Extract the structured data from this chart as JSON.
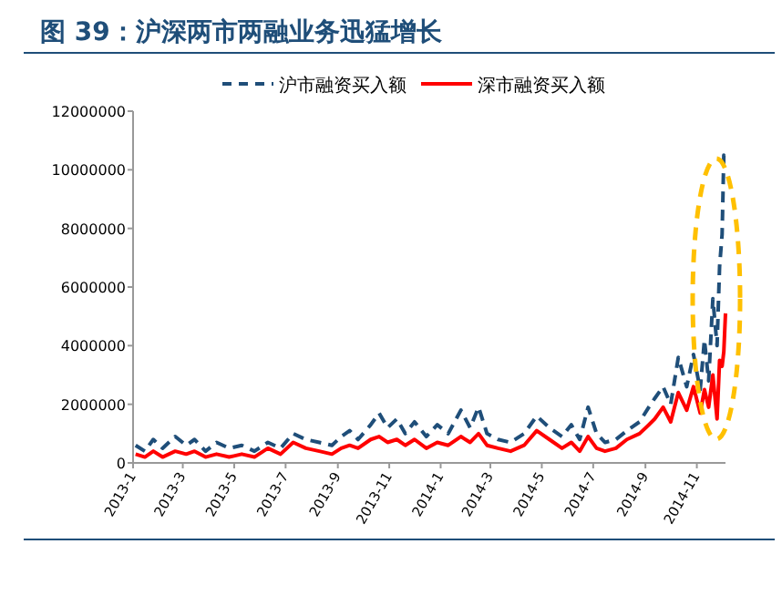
{
  "chart_data": {
    "type": "line",
    "title": "图 39：沪深两市两融业务迅猛增长",
    "x": [
      "2013-01-04",
      "2013-01-15",
      "2013-01-25",
      "2013-02-05",
      "2013-02-20",
      "2013-03-05",
      "2013-03-15",
      "2013-03-28",
      "2013-04-10",
      "2013-04-25",
      "2013-05-10",
      "2013-05-25",
      "2013-06-10",
      "2013-06-25",
      "2013-07-10",
      "2013-07-25",
      "2013-08-10",
      "2013-08-25",
      "2013-09-05",
      "2013-09-15",
      "2013-09-25",
      "2013-10-10",
      "2013-10-20",
      "2013-10-30",
      "2013-11-10",
      "2013-11-20",
      "2013-12-01",
      "2013-12-15",
      "2013-12-28",
      "2014-01-10",
      "2014-01-25",
      "2014-02-05",
      "2014-02-15",
      "2014-02-25",
      "2014-03-10",
      "2014-03-25",
      "2014-04-10",
      "2014-04-25",
      "2014-05-10",
      "2014-05-25",
      "2014-06-05",
      "2014-06-15",
      "2014-06-25",
      "2014-07-05",
      "2014-07-15",
      "2014-07-28",
      "2014-08-10",
      "2014-08-25",
      "2014-09-05",
      "2014-09-12",
      "2014-09-22",
      "2014-10-01",
      "2014-10-10",
      "2014-10-20",
      "2014-10-28",
      "2014-11-05",
      "2014-11-10",
      "2014-11-15",
      "2014-11-20",
      "2014-11-25",
      "2014-11-28",
      "2014-12-01",
      "2014-12-03",
      "2014-12-05"
    ],
    "series": [
      {
        "name": "沪市融资买入额",
        "color": "#1f4e79",
        "line_style": "dashed",
        "values": [
          600000,
          400000,
          800000,
          500000,
          900000,
          600000,
          800000,
          400000,
          700000,
          500000,
          600000,
          400000,
          700000,
          500000,
          1000000,
          800000,
          700000,
          600000,
          900000,
          1100000,
          800000,
          1300000,
          1700000,
          1200000,
          1500000,
          1000000,
          1400000,
          900000,
          1300000,
          1000000,
          1800000,
          1200000,
          1900000,
          1000000,
          800000,
          700000,
          1000000,
          1600000,
          1200000,
          900000,
          1300000,
          800000,
          1900000,
          1000000,
          700000,
          800000,
          1100000,
          1400000,
          1900000,
          2200000,
          2600000,
          2000000,
          3600000,
          2600000,
          3700000,
          2500000,
          4200000,
          2800000,
          5600000,
          4000000,
          6700000,
          7800000,
          10500000,
          10300000
        ]
      },
      {
        "name": "深市融资买入额",
        "color": "#ff0000",
        "line_style": "solid",
        "values": [
          300000,
          200000,
          400000,
          200000,
          400000,
          300000,
          400000,
          200000,
          300000,
          200000,
          300000,
          200000,
          500000,
          300000,
          700000,
          500000,
          400000,
          300000,
          500000,
          600000,
          500000,
          800000,
          900000,
          700000,
          800000,
          600000,
          800000,
          500000,
          700000,
          600000,
          900000,
          700000,
          1000000,
          600000,
          500000,
          400000,
          600000,
          1100000,
          800000,
          500000,
          700000,
          400000,
          900000,
          500000,
          400000,
          500000,
          800000,
          1000000,
          1300000,
          1500000,
          1900000,
          1400000,
          2400000,
          1800000,
          2600000,
          1700000,
          2500000,
          1900000,
          3000000,
          1500000,
          3500000,
          3300000,
          3800000,
          5100000
        ]
      }
    ],
    "xlim": [
      "2013-01-01",
      "2014-12-05"
    ],
    "xticks": [
      {
        "value": "2013-01-01",
        "label": "2013-1"
      },
      {
        "value": "2013-03-01",
        "label": "2013-3"
      },
      {
        "value": "2013-05-01",
        "label": "2013-5"
      },
      {
        "value": "2013-07-01",
        "label": "2013-7"
      },
      {
        "value": "2013-09-01",
        "label": "2013-9"
      },
      {
        "value": "2013-11-01",
        "label": "2013-11"
      },
      {
        "value": "2014-01-01",
        "label": "2014-1"
      },
      {
        "value": "2014-03-01",
        "label": "2014-3"
      },
      {
        "value": "2014-05-01",
        "label": "2014-5"
      },
      {
        "value": "2014-07-01",
        "label": "2014-7"
      },
      {
        "value": "2014-09-01",
        "label": "2014-9"
      },
      {
        "value": "2014-11-01",
        "label": "2014-11"
      }
    ],
    "ylim": [
      0,
      12000000
    ],
    "yticks": [
      0,
      2000000,
      4000000,
      6000000,
      8000000,
      10000000,
      12000000
    ],
    "legend": "top",
    "grid": false,
    "marker": "none"
  }
}
